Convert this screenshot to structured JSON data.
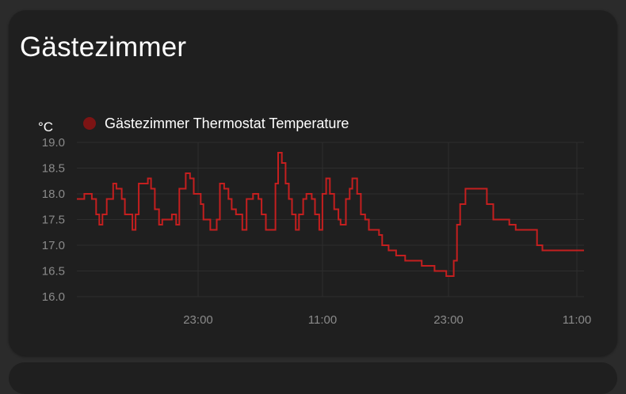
{
  "card": {
    "title": "Gästezimmer"
  },
  "colors": {
    "line": "#c41f1f",
    "legend_dot": "#7d1414",
    "card_bg": "#1f1f1f",
    "page_bg": "#2b2b2b"
  },
  "chart_data": {
    "type": "line",
    "ylabel": "°C",
    "ylim": [
      16.0,
      19.0
    ],
    "y_ticks": [
      "19.0",
      "18.5",
      "18.0",
      "17.5",
      "17.0",
      "16.5",
      "16.0"
    ],
    "x_ticks": [
      "23:00",
      "11:00",
      "23:00",
      "11:00"
    ],
    "series": [
      {
        "name": "Gästezimmer Thermostat Temperature",
        "step": true,
        "x": [
          0,
          0.7,
          1.4,
          1.8,
          2.1,
          2.4,
          2.8,
          3.4,
          3.7,
          4.2,
          4.5,
          4.75,
          5.2,
          5.5,
          5.8,
          6.3,
          6.65,
          6.95,
          7.3,
          7.7,
          8.0,
          8.3,
          8.9,
          9.3,
          9.6,
          10.2,
          10.6,
          10.95,
          11.25,
          11.6,
          11.85,
          12.5,
          13.1,
          13.4,
          13.8,
          14.2,
          14.5,
          14.9,
          15.2,
          15.5,
          15.9,
          16.5,
          17.0,
          17.3,
          17.7,
          18.2,
          18.6,
          18.85,
          19.2,
          19.55,
          19.85,
          20.15,
          20.5,
          20.8,
          21.2,
          21.5,
          22.0,
          22.3,
          22.7,
          23.0,
          23.35,
          23.7,
          24.1,
          24.5,
          24.7,
          25.2,
          25.55,
          25.8,
          26.25,
          26.6,
          27.0,
          27.35,
          27.8,
          28.3,
          28.6,
          28.95,
          29.2,
          29.6,
          29.9,
          30.3,
          30.75,
          31.15,
          31.6,
          32.3,
          33.0,
          33.5,
          33.9,
          34.3,
          34.6,
          34.9,
          35.1,
          35.3,
          35.6,
          35.9,
          36.4,
          37.0,
          38.0,
          38.4,
          39.0,
          40.5,
          41.1,
          42.7,
          43.1,
          43.6,
          43.9,
          44.4,
          44.7,
          44.95,
          45.2,
          45.5,
          45.75,
          46.0,
          46.5,
          46.8,
          47.1,
          47.3
        ],
        "y": [
          17.9,
          18.0,
          17.9,
          17.6,
          17.4,
          17.6,
          17.9,
          18.2,
          18.1,
          17.9,
          17.6,
          17.6,
          17.3,
          17.6,
          18.2,
          18.2,
          18.3,
          18.1,
          17.7,
          17.4,
          17.5,
          17.5,
          17.6,
          17.4,
          18.1,
          18.4,
          18.3,
          18.0,
          18.0,
          17.8,
          17.5,
          17.3,
          17.5,
          18.2,
          18.1,
          17.9,
          17.7,
          17.6,
          17.6,
          17.3,
          17.9,
          18.0,
          17.9,
          17.6,
          17.3,
          17.3,
          18.2,
          18.8,
          18.6,
          18.2,
          17.9,
          17.6,
          17.3,
          17.6,
          17.9,
          18.0,
          17.9,
          17.6,
          17.3,
          18.0,
          18.3,
          18.0,
          17.7,
          17.5,
          17.4,
          17.9,
          18.1,
          18.3,
          18.0,
          17.6,
          17.5,
          17.3,
          17.3,
          17.2,
          17.0,
          17.0,
          16.9,
          16.9,
          16.8,
          16.8,
          16.7,
          16.7,
          16.7,
          16.6,
          16.6,
          16.5,
          16.5,
          16.5,
          16.4,
          16.4,
          16.4,
          16.7,
          17.4,
          17.8,
          18.1,
          18.1,
          18.1,
          17.8,
          17.5,
          17.4,
          17.3,
          17.3,
          17.0,
          16.9,
          16.9,
          16.9,
          16.9,
          16.9,
          16.9,
          16.9,
          16.9,
          16.9,
          16.9,
          16.9,
          16.9,
          16.9
        ]
      }
    ],
    "grid": true,
    "legend_position": "top-left"
  }
}
